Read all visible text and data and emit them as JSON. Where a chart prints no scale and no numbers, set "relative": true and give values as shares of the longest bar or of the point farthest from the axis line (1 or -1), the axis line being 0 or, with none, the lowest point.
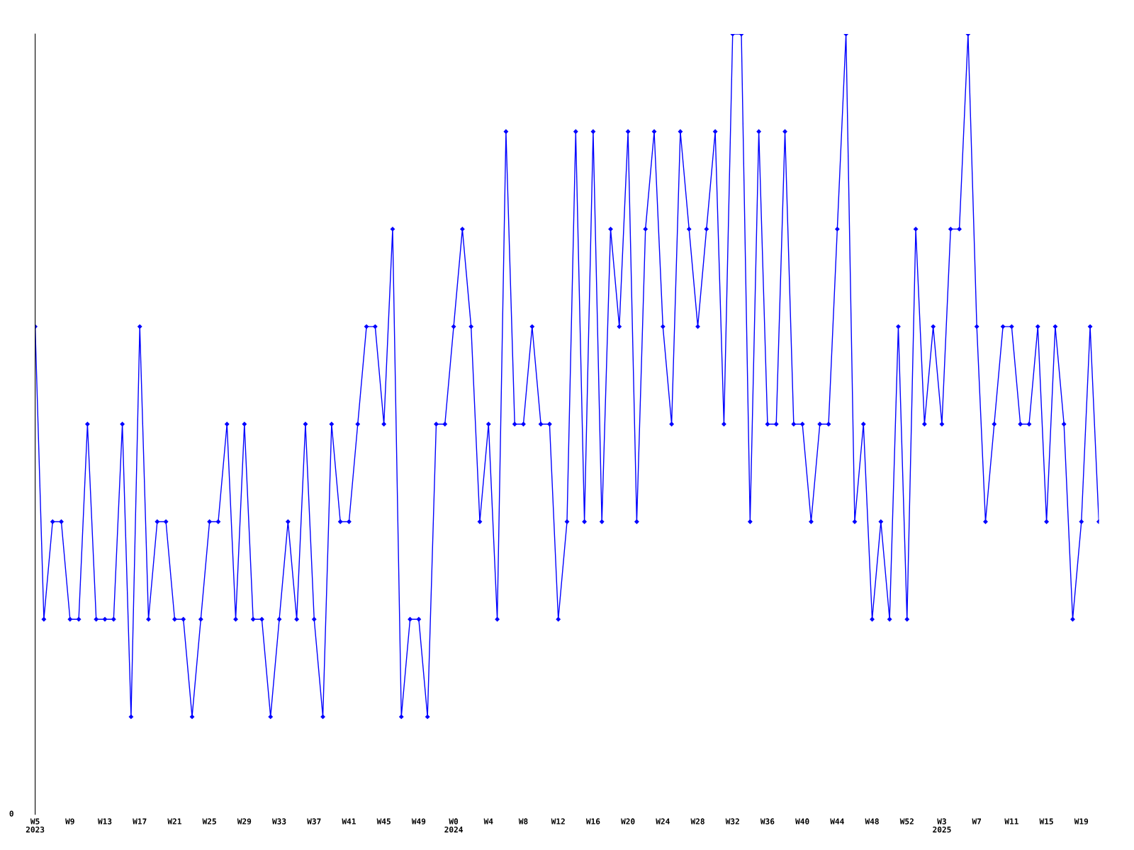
{
  "chart_data": {
    "type": "line",
    "relative": true,
    "color": "#0000ff",
    "marker": "diamond",
    "grid": false,
    "annotations": [
      "0"
    ],
    "categories": [
      "W5\n2023",
      null,
      null,
      null,
      "W9",
      null,
      null,
      null,
      "W13",
      null,
      null,
      null,
      "W17",
      null,
      null,
      null,
      "W21",
      null,
      null,
      null,
      "W25",
      null,
      null,
      null,
      "W29",
      null,
      null,
      null,
      "W33",
      null,
      null,
      null,
      "W37",
      null,
      null,
      null,
      "W41",
      null,
      null,
      null,
      "W45",
      null,
      null,
      null,
      "W49",
      null,
      null,
      null,
      "W0\n2024",
      null,
      null,
      null,
      "W4",
      null,
      null,
      null,
      "W8",
      null,
      null,
      null,
      "W12",
      null,
      null,
      null,
      "W16",
      null,
      null,
      null,
      "W20",
      null,
      null,
      null,
      "W24",
      null,
      null,
      null,
      "W28",
      null,
      null,
      null,
      "W32",
      null,
      null,
      null,
      "W36",
      null,
      null,
      null,
      "W40",
      null,
      null,
      null,
      "W44",
      null,
      null,
      null,
      "W48",
      null,
      null,
      null,
      "W52",
      null,
      null,
      null,
      "W3\n2025",
      null,
      null,
      null,
      "W7",
      null,
      null,
      null,
      "W11",
      null,
      null,
      null,
      "W15",
      null,
      null,
      null,
      "W19",
      null,
      null
    ],
    "values": [
      0.625,
      0.25,
      0.375,
      0.375,
      0.25,
      0.25,
      0.5,
      0.25,
      0.25,
      0.25,
      0.5,
      0.125,
      0.625,
      0.25,
      0.375,
      0.375,
      0.25,
      0.25,
      0.125,
      0.25,
      0.375,
      0.375,
      0.5,
      0.25,
      0.5,
      0.25,
      0.25,
      0.125,
      0.25,
      0.375,
      0.25,
      0.5,
      0.25,
      0.125,
      0.5,
      0.375,
      0.375,
      0.5,
      0.625,
      0.625,
      0.5,
      0.75,
      0.125,
      0.25,
      0.25,
      0.125,
      0.5,
      0.5,
      0.625,
      0.75,
      0.625,
      0.375,
      0.5,
      0.25,
      0.875,
      0.5,
      0.5,
      0.625,
      0.5,
      0.5,
      0.25,
      0.375,
      0.875,
      0.375,
      0.875,
      0.375,
      0.75,
      0.625,
      0.875,
      0.375,
      0.75,
      0.875,
      0.625,
      0.5,
      0.875,
      0.75,
      0.625,
      0.75,
      0.875,
      0.5,
      1,
      1,
      0.375,
      0.875,
      0.5,
      0.5,
      0.875,
      0.5,
      0.5,
      0.375,
      0.5,
      0.5,
      0.75,
      1,
      0.375,
      0.5,
      0.25,
      0.375,
      0.25,
      0.625,
      0.25,
      0.75,
      0.5,
      0.625,
      0.5,
      0.75,
      0.75,
      1,
      0.625,
      0.375,
      0.5,
      0.625,
      0.625,
      0.5,
      0.5,
      0.625,
      0.375,
      0.625,
      0.5,
      0.25,
      0.375,
      0.625,
      0.375
    ]
  }
}
